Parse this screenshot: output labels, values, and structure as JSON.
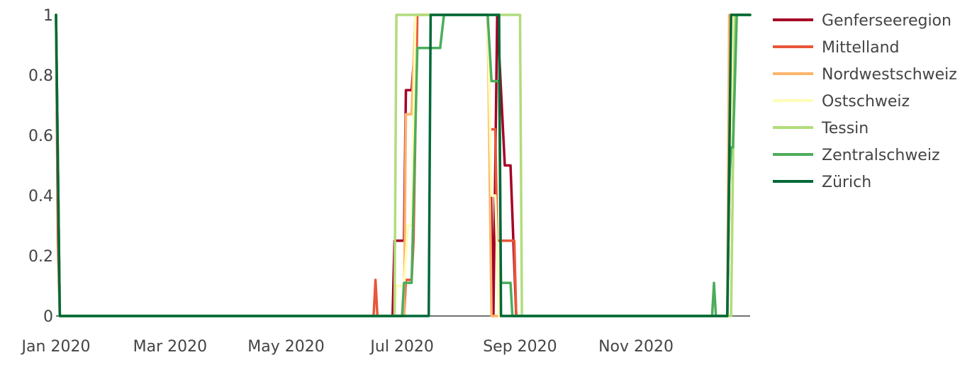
{
  "chart_data": {
    "type": "line",
    "title": "",
    "xlabel": "",
    "ylabel": "",
    "xlim": [
      "2020-01-01",
      "2020-12-31"
    ],
    "ylim": [
      0,
      1
    ],
    "grid": false,
    "legend_position": "right",
    "x_ticks": [
      {
        "date": "2020-01-01",
        "label": "Jan 2020"
      },
      {
        "date": "2020-03-01",
        "label": "Mar 2020"
      },
      {
        "date": "2020-05-01",
        "label": "May 2020"
      },
      {
        "date": "2020-07-01",
        "label": "Jul 2020"
      },
      {
        "date": "2020-09-01",
        "label": "Sep 2020"
      },
      {
        "date": "2020-11-01",
        "label": "Nov 2020"
      }
    ],
    "y_ticks": [
      {
        "value": 0,
        "label": "0"
      },
      {
        "value": 0.2,
        "label": "0.2"
      },
      {
        "value": 0.4,
        "label": "0.4"
      },
      {
        "value": 0.6,
        "label": "0.6"
      },
      {
        "value": 0.8,
        "label": "0.8"
      },
      {
        "value": 1,
        "label": "1"
      }
    ],
    "series": [
      {
        "name": "Genferseeregion",
        "color": "#a50026",
        "points": [
          [
            "2020-01-01",
            1
          ],
          [
            "2020-01-03",
            0
          ],
          [
            "2020-06-26",
            0
          ],
          [
            "2020-06-27",
            0.25
          ],
          [
            "2020-07-02",
            0.25
          ],
          [
            "2020-07-03",
            0.75
          ],
          [
            "2020-07-06",
            0.75
          ],
          [
            "2020-07-09",
            1
          ],
          [
            "2020-08-15",
            1
          ],
          [
            "2020-08-18",
            0
          ],
          [
            "2020-08-20",
            1
          ],
          [
            "2020-08-22",
            0.75
          ],
          [
            "2020-08-24",
            0.5
          ],
          [
            "2020-08-27",
            0.5
          ],
          [
            "2020-08-30",
            0
          ],
          [
            "2020-12-19",
            0
          ],
          [
            "2020-12-22",
            1
          ],
          [
            "2020-12-31",
            1
          ]
        ]
      },
      {
        "name": "Mittelland",
        "color": "#e8573a",
        "points": [
          [
            "2020-01-01",
            1
          ],
          [
            "2020-01-02",
            0.25
          ],
          [
            "2020-01-03",
            0
          ],
          [
            "2020-06-16",
            0
          ],
          [
            "2020-06-17",
            0.12
          ],
          [
            "2020-06-18",
            0
          ],
          [
            "2020-07-02",
            0
          ],
          [
            "2020-07-03",
            0.12
          ],
          [
            "2020-07-06",
            0.12
          ],
          [
            "2020-07-07",
            0.25
          ],
          [
            "2020-07-09",
            1
          ],
          [
            "2020-08-15",
            1
          ],
          [
            "2020-08-16",
            0.62
          ],
          [
            "2020-08-19",
            0.62
          ],
          [
            "2020-08-20",
            0.25
          ],
          [
            "2020-08-29",
            0.25
          ],
          [
            "2020-08-30",
            0
          ],
          [
            "2020-12-19",
            0
          ],
          [
            "2020-12-21",
            1
          ],
          [
            "2020-12-31",
            1
          ]
        ]
      },
      {
        "name": "Nordwestschweiz",
        "color": "#fdb46a",
        "points": [
          [
            "2020-01-01",
            1
          ],
          [
            "2020-01-03",
            0
          ],
          [
            "2020-07-02",
            0
          ],
          [
            "2020-07-03",
            0.67
          ],
          [
            "2020-07-06",
            0.67
          ],
          [
            "2020-07-08",
            1
          ],
          [
            "2020-08-15",
            1
          ],
          [
            "2020-08-17",
            0
          ],
          [
            "2020-08-20",
            0
          ],
          [
            "2020-12-19",
            0
          ],
          [
            "2020-12-20",
            1
          ],
          [
            "2020-12-31",
            1
          ]
        ]
      },
      {
        "name": "Ostschweiz",
        "color": "#fefdb8",
        "points": [
          [
            "2020-01-01",
            1
          ],
          [
            "2020-01-03",
            0
          ],
          [
            "2020-06-27",
            0
          ],
          [
            "2020-06-28",
            0.1
          ],
          [
            "2020-07-02",
            0.1
          ],
          [
            "2020-07-04",
            0.3
          ],
          [
            "2020-07-06",
            0.3
          ],
          [
            "2020-07-08",
            1
          ],
          [
            "2020-08-15",
            1
          ],
          [
            "2020-08-17",
            0.4
          ],
          [
            "2020-08-19",
            0.4
          ],
          [
            "2020-08-21",
            0
          ],
          [
            "2020-12-19",
            0
          ],
          [
            "2020-12-22",
            1
          ],
          [
            "2020-12-31",
            1
          ]
        ]
      },
      {
        "name": "Tessin",
        "color": "#b1dc7c",
        "points": [
          [
            "2020-01-01",
            1
          ],
          [
            "2020-01-03",
            0
          ],
          [
            "2020-06-27",
            0
          ],
          [
            "2020-06-28",
            1
          ],
          [
            "2020-09-01",
            1
          ],
          [
            "2020-09-02",
            0
          ],
          [
            "2020-12-21",
            0
          ],
          [
            "2020-12-23",
            1
          ],
          [
            "2020-12-31",
            1
          ]
        ]
      },
      {
        "name": "Zentralschweiz",
        "color": "#4cad5b",
        "points": [
          [
            "2020-01-01",
            1
          ],
          [
            "2020-01-03",
            0
          ],
          [
            "2020-07-01",
            0
          ],
          [
            "2020-07-02",
            0.11
          ],
          [
            "2020-07-06",
            0.11
          ],
          [
            "2020-07-09",
            0.89
          ],
          [
            "2020-07-21",
            0.89
          ],
          [
            "2020-07-23",
            1
          ],
          [
            "2020-08-15",
            1
          ],
          [
            "2020-08-16",
            0.89
          ],
          [
            "2020-08-17",
            0.78
          ],
          [
            "2020-08-21",
            0.78
          ],
          [
            "2020-08-22",
            0.11
          ],
          [
            "2020-08-27",
            0.11
          ],
          [
            "2020-08-28",
            0
          ],
          [
            "2020-12-11",
            0
          ],
          [
            "2020-12-12",
            0.11
          ],
          [
            "2020-12-13",
            0
          ],
          [
            "2020-12-19",
            0
          ],
          [
            "2020-12-20",
            0.44
          ],
          [
            "2020-12-21",
            0.56
          ],
          [
            "2020-12-22",
            0.56
          ],
          [
            "2020-12-24",
            1
          ],
          [
            "2020-12-31",
            1
          ]
        ]
      },
      {
        "name": "Zürich",
        "color": "#006837",
        "points": [
          [
            "2020-01-01",
            1
          ],
          [
            "2020-01-03",
            0
          ],
          [
            "2020-07-15",
            0
          ],
          [
            "2020-07-16",
            1
          ],
          [
            "2020-08-21",
            1
          ],
          [
            "2020-08-22",
            0
          ],
          [
            "2020-12-19",
            0
          ],
          [
            "2020-12-21",
            1
          ],
          [
            "2020-12-31",
            1
          ]
        ]
      }
    ]
  }
}
